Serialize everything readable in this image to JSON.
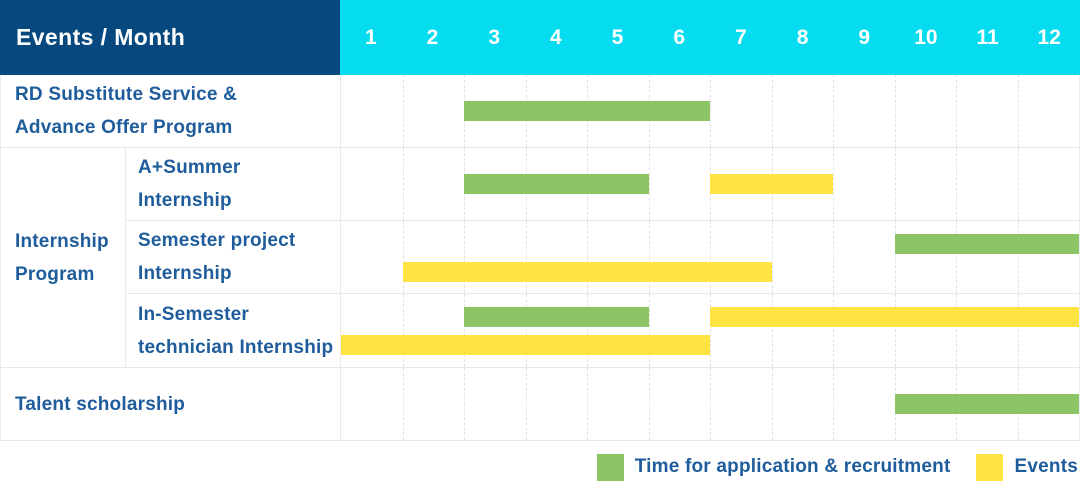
{
  "header": {
    "title": "Events / Month",
    "months": [
      "1",
      "2",
      "3",
      "4",
      "5",
      "6",
      "7",
      "8",
      "9",
      "10",
      "11",
      "12"
    ]
  },
  "group": {
    "label": "Internship Program",
    "lines": [
      "Internship",
      "Program"
    ]
  },
  "legend": {
    "items": [
      {
        "color_key": "green",
        "label": "Time for application & recruitment"
      },
      {
        "color_key": "yellow",
        "label": "Events"
      }
    ]
  },
  "colors": {
    "header_bg": "#07497f",
    "months_bg": "#06dcf0",
    "text_blue": "#1e5c9c",
    "green": "#8bc566",
    "yellow": "#ffe342",
    "row_border": "#e9e9e9",
    "gridline": "#e3e3e3"
  },
  "chart_data": {
    "type": "gantt",
    "x_unit": "month",
    "x_ticks": [
      "1",
      "2",
      "3",
      "4",
      "5",
      "6",
      "7",
      "8",
      "9",
      "10",
      "11",
      "12"
    ],
    "x_range": [
      1,
      12
    ],
    "legend": {
      "green": "Time for application & recruitment",
      "yellow": "Events"
    },
    "rows": [
      {
        "group": "",
        "label": "RD Substitute Service & Advance Offer Program",
        "label_lines": [
          "RD Substitute Service &",
          "Advance Offer Program"
        ],
        "bars": [
          {
            "color_key": "green",
            "meaning": "Time for application & recruitment",
            "start_month": 3,
            "end_month": 6,
            "lane": "mid"
          }
        ]
      },
      {
        "group": "Internship Program",
        "label": "A+Summer Internship",
        "label_lines": [
          "A+Summer",
          "Internship"
        ],
        "bars": [
          {
            "color_key": "green",
            "meaning": "Time for application & recruitment",
            "start_month": 3,
            "end_month": 5,
            "lane": "mid"
          },
          {
            "color_key": "yellow",
            "meaning": "Events",
            "start_month": 7,
            "end_month": 8,
            "lane": "mid"
          }
        ]
      },
      {
        "group": "Internship Program",
        "label": "Semester project Internship",
        "label_lines": [
          "Semester project",
          "Internship"
        ],
        "bars": [
          {
            "color_key": "green",
            "meaning": "Time for application & recruitment",
            "start_month": 10,
            "end_month": 12,
            "lane": "top"
          },
          {
            "color_key": "yellow",
            "meaning": "Events",
            "start_month": 2,
            "end_month": 7,
            "lane": "bottom"
          }
        ]
      },
      {
        "group": "Internship Program",
        "label": "In-Semester technician Internship",
        "label_lines": [
          "In-Semester",
          "technician Internship"
        ],
        "bars": [
          {
            "color_key": "green",
            "meaning": "Time for application & recruitment",
            "start_month": 3,
            "end_month": 5,
            "lane": "top"
          },
          {
            "color_key": "yellow",
            "meaning": "Events",
            "start_month": 7,
            "end_month": 12,
            "lane": "top"
          },
          {
            "color_key": "yellow",
            "meaning": "Events",
            "start_month": 1,
            "end_month": 6,
            "lane": "bottom"
          }
        ]
      },
      {
        "group": "",
        "label": "Talent scholarship",
        "label_lines": [
          "Talent scholarship"
        ],
        "bars": [
          {
            "color_key": "green",
            "meaning": "Time for application & recruitment",
            "start_month": 10,
            "end_month": 12,
            "lane": "mid"
          }
        ]
      }
    ]
  }
}
